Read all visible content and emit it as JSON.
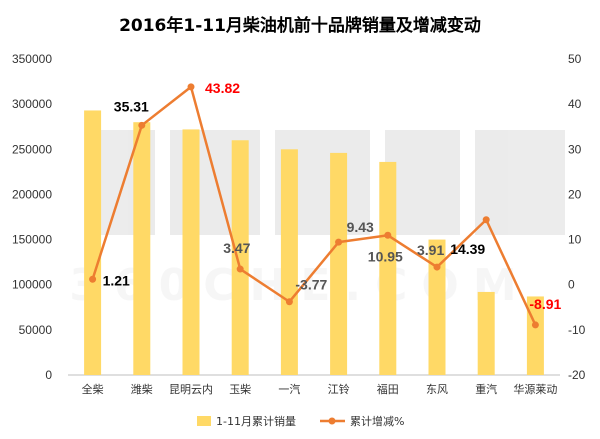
{
  "chart_data": {
    "type": "bar",
    "title": "2016年1-11月柴油机前十品牌销量及增减变动",
    "categories": [
      "全柴",
      "潍柴",
      "昆明云内",
      "玉柴",
      "一汽",
      "江铃",
      "福田",
      "东风",
      "重汽",
      "华源莱动"
    ],
    "series": [
      {
        "name": "1-11月累计销量",
        "type": "bar",
        "axis": "left",
        "color": "#FFD966",
        "values": [
          293000,
          280000,
          272000,
          260000,
          250000,
          246000,
          236000,
          150000,
          92000,
          87000
        ]
      },
      {
        "name": "累计增减%",
        "type": "line",
        "axis": "right",
        "color": "#ED7D31",
        "values": [
          1.21,
          35.31,
          43.82,
          3.47,
          -3.77,
          9.43,
          10.95,
          3.91,
          14.39,
          -8.91
        ],
        "labels": [
          "1.21",
          "35.31",
          "43.82",
          "3.47",
          "-3.77",
          "9.43",
          "10.95",
          "3.91",
          "14.39",
          "-8.91"
        ]
      }
    ],
    "y_left": {
      "min": 0,
      "max": 350000,
      "step": 50000
    },
    "y_right": {
      "min": -20,
      "max": 50,
      "step": 10
    },
    "grid": false,
    "legend_position": "bottom",
    "highlight_color": "#FF0000"
  }
}
